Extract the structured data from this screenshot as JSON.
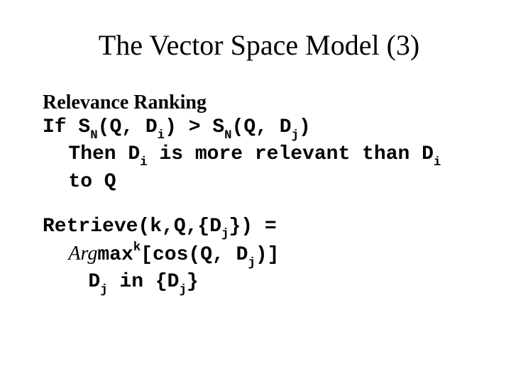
{
  "colors": {
    "background": "#ffffff",
    "text": "#000000"
  },
  "typography": {
    "title_font": "Times New Roman",
    "title_fontsize_pt": 30,
    "body_font_serif": "Times New Roman",
    "body_font_mono": "Courier New",
    "body_fontsize_pt": 21
  },
  "title": "The Vector Space Model (3)",
  "section1": {
    "heading": "Relevance Ranking",
    "if_label": "If ",
    "sn1": "S",
    "n_sub": "N",
    "open_paren": "(Q, D",
    "i_sub": "i",
    "close_paren": ")",
    "gt": " > ",
    "sn2": "S",
    "open_paren2": "(Q, D",
    "j_sub": "j",
    "close_paren2": ")",
    "then_prefix": "Then D",
    "then_mid": " is more relevant than D",
    "then_line_rest": "",
    "to_q": "to Q"
  },
  "section2": {
    "retrieve_a": "Retrieve(k,Q,{D",
    "retrieve_j": "j",
    "retrieve_b": "}) =",
    "arg": "Arg",
    "max": "max",
    "k_sup": "k",
    "cos_a": "[cos(Q, D",
    "cos_j": "j",
    "cos_b": ")]",
    "dj_in_a": "D",
    "dj_in_j1": "j",
    "dj_in_mid": " in {D",
    "dj_in_j2": "j",
    "dj_in_b": "}"
  }
}
